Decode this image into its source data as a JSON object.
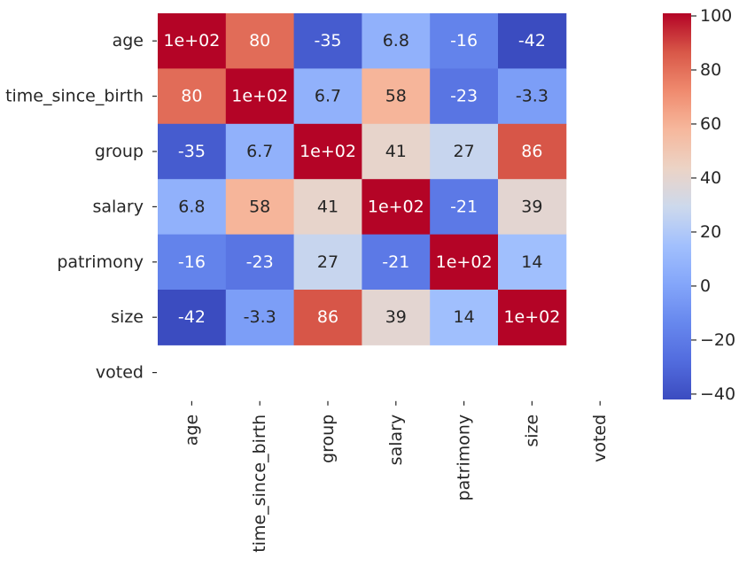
{
  "chart_data": {
    "type": "heatmap",
    "colormap": "coolwarm",
    "row_labels": [
      "age",
      "time_since_birth",
      "group",
      "salary",
      "patrimony",
      "size",
      "voted"
    ],
    "col_labels": [
      "age",
      "time_since_birth",
      "group",
      "salary",
      "patrimony",
      "size",
      "voted"
    ],
    "values": [
      [
        100,
        80,
        -35,
        6.8,
        -16,
        -42,
        null
      ],
      [
        80,
        100,
        6.7,
        58,
        -23,
        -3.3,
        null
      ],
      [
        -35,
        6.7,
        100,
        41,
        27,
        86,
        null
      ],
      [
        6.8,
        58,
        41,
        100,
        -21,
        39,
        null
      ],
      [
        -16,
        -23,
        27,
        -21,
        100,
        14,
        null
      ],
      [
        -42,
        -3.3,
        86,
        39,
        14,
        100,
        null
      ],
      [
        null,
        null,
        null,
        null,
        null,
        null,
        null
      ]
    ],
    "annotations": [
      [
        "1e+02",
        "80",
        "-35",
        "6.8",
        "-16",
        "-42",
        ""
      ],
      [
        "80",
        "1e+02",
        "6.7",
        "58",
        "-23",
        "-3.3",
        ""
      ],
      [
        "-35",
        "6.7",
        "1e+02",
        "41",
        "27",
        "86",
        ""
      ],
      [
        "6.8",
        "58",
        "41",
        "1e+02",
        "-21",
        "39",
        ""
      ],
      [
        "-16",
        "-23",
        "27",
        "-21",
        "1e+02",
        "14",
        ""
      ],
      [
        "-42",
        "-3.3",
        "86",
        "39",
        "14",
        "1e+02",
        ""
      ],
      [
        "",
        "",
        "",
        "",
        "",
        "",
        ""
      ]
    ],
    "colorbar": {
      "vmin": -42,
      "vmax": 100,
      "ticks": [
        100,
        80,
        60,
        40,
        20,
        0,
        -20,
        -40
      ],
      "tick_labels": [
        "100",
        "80",
        "60",
        "40",
        "20",
        "0",
        "−20",
        "−40"
      ]
    },
    "title": "",
    "xlabel": "",
    "ylabel": ""
  }
}
